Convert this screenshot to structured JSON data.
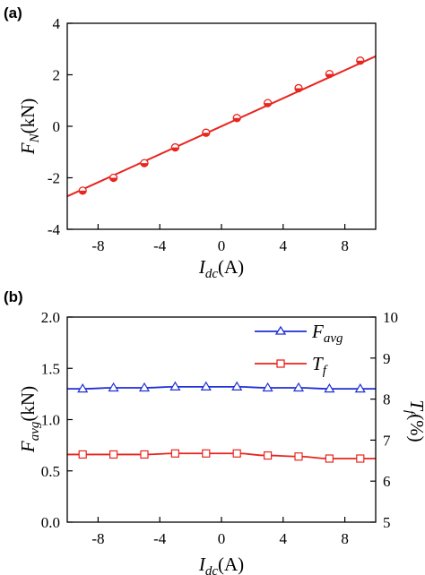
{
  "chart_data": [
    {
      "panel": "(a)",
      "type": "line",
      "xlabel": {
        "main": "I",
        "sub": "dc",
        "unit": "(A)"
      },
      "ylabel": {
        "main": "F",
        "sub": "N",
        "unit": "(kN)"
      },
      "xlim": [
        -10,
        10
      ],
      "ylim": [
        -4,
        4
      ],
      "xticks": [
        -8,
        -4,
        0,
        4,
        8
      ],
      "yticks": [
        -4,
        -2,
        0,
        2,
        4
      ],
      "xtick_labels": [
        "-8",
        "-4",
        "0",
        "4",
        "8"
      ],
      "ytick_labels": [
        "-4",
        "-2",
        "0",
        "2",
        "4"
      ],
      "color": "#e8251e",
      "line": {
        "x": [
          -10,
          10
        ],
        "y": [
          -2.72,
          2.72
        ]
      },
      "points": {
        "x": [
          -9,
          -7,
          -5,
          -3,
          -1,
          1,
          3,
          5,
          7,
          9
        ],
        "y": [
          -2.5,
          -2.0,
          -1.43,
          -0.82,
          -0.25,
          0.32,
          0.9,
          1.48,
          2.03,
          2.55
        ]
      }
    },
    {
      "panel": "(b)",
      "type": "line",
      "xlabel": {
        "main": "I",
        "sub": "dc",
        "unit": "(A)"
      },
      "ylabel": {
        "main": "F",
        "sub": "avg",
        "unit": "(kN)"
      },
      "y2label": {
        "main": "T",
        "sub": "f",
        "unit": "(%)"
      },
      "xlim": [
        -10,
        10
      ],
      "ylim": [
        0,
        2.0
      ],
      "y2lim": [
        5,
        10
      ],
      "xticks": [
        -8,
        -4,
        0,
        4,
        8
      ],
      "yticks": [
        0,
        0.5,
        1.0,
        1.5,
        2.0
      ],
      "y2ticks": [
        5,
        6,
        7,
        8,
        9,
        10
      ],
      "xtick_labels": [
        "-8",
        "-4",
        "0",
        "4",
        "8"
      ],
      "ytick_labels": [
        "0.0",
        "0.5",
        "1.0",
        "1.5",
        "2.0"
      ],
      "y2tick_labels": [
        "5",
        "6",
        "7",
        "8",
        "9",
        "10"
      ],
      "legend_position": "top-right",
      "series": [
        {
          "name": {
            "main": "F",
            "sub": "avg"
          },
          "axis": "left",
          "marker": "triangle",
          "color": "#1f2fd6",
          "x": [
            -9,
            -7,
            -5,
            -3,
            -1,
            1,
            3,
            5,
            7,
            9
          ],
          "y": [
            1.3,
            1.31,
            1.31,
            1.32,
            1.32,
            1.32,
            1.31,
            1.31,
            1.3,
            1.3
          ]
        },
        {
          "name": {
            "main": "T",
            "sub": "f"
          },
          "axis": "left",
          "marker": "square",
          "color": "#e8251e",
          "x": [
            -9,
            -7,
            -5,
            -3,
            -1,
            1,
            3,
            5,
            7,
            9
          ],
          "y": [
            0.66,
            0.66,
            0.66,
            0.67,
            0.67,
            0.67,
            0.65,
            0.64,
            0.62,
            0.62
          ]
        }
      ]
    }
  ]
}
